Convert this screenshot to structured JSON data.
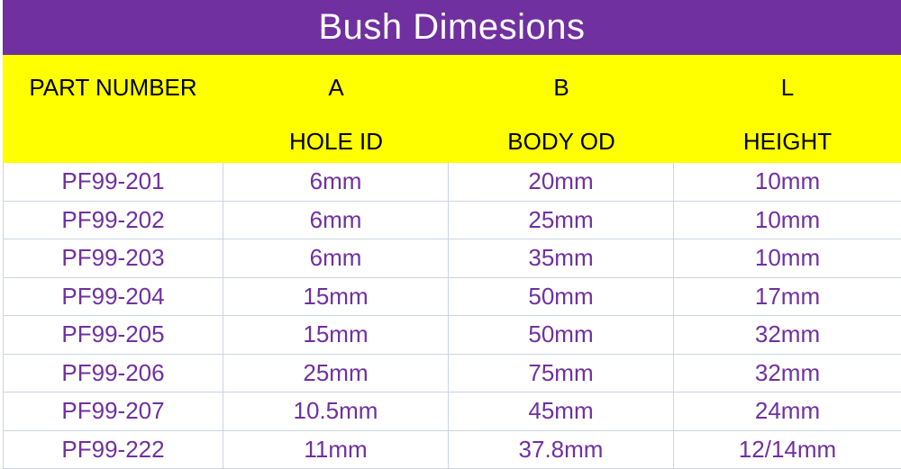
{
  "chart_data": {
    "type": "table",
    "title": "Bush Dimesions",
    "header_row_1": [
      "PART NUMBER",
      "A",
      "B",
      "L"
    ],
    "header_row_2": [
      "",
      "HOLE ID",
      "BODY OD",
      "HEIGHT"
    ],
    "column_semantics": [
      "part number",
      "A = hole inner diameter",
      "B = body outer diameter",
      "L = height"
    ],
    "rows": [
      [
        "PF99-201",
        "6mm",
        "20mm",
        "10mm"
      ],
      [
        "PF99-202",
        "6mm",
        "25mm",
        "10mm"
      ],
      [
        "PF99-203",
        "6mm",
        "35mm",
        "10mm"
      ],
      [
        "PF99-204",
        "15mm",
        "50mm",
        "17mm"
      ],
      [
        "PF99-205",
        "15mm",
        "50mm",
        "32mm"
      ],
      [
        "PF99-206",
        "25mm",
        "75mm",
        "32mm"
      ],
      [
        "PF99-207",
        "10.5mm",
        "45mm",
        "24mm"
      ],
      [
        "PF99-222",
        "11mm",
        "37.8mm",
        "12/14mm"
      ]
    ],
    "layout_hints": {
      "legend_position": "none",
      "grid": "on"
    }
  },
  "colors": {
    "title_bg": "#7030A0",
    "title_text": "#FFFFFF",
    "header_bg": "#FFFF00",
    "header_text": "#000000",
    "data_text": "#7030A0",
    "gridline": "#CDD4E1",
    "background": "#FFFFFF"
  }
}
